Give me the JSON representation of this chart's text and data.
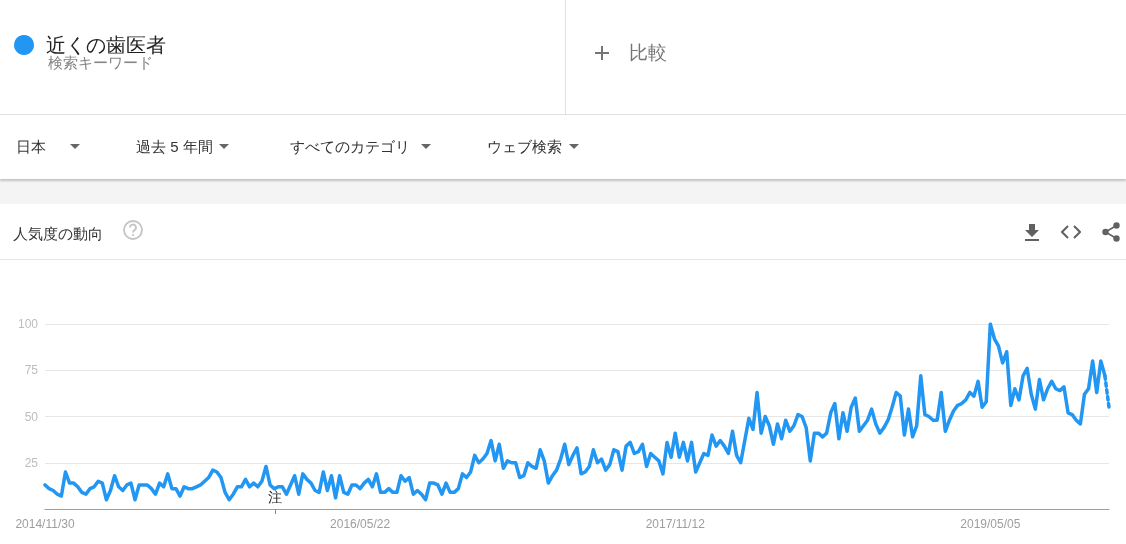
{
  "chart_data": {
    "type": "line",
    "title": "人気度の動向",
    "annotations": [
      "検索キーワード",
      "比較",
      "日本",
      "過去 5 年間",
      "すべてのカテゴリ",
      "ウェブ検索",
      "注"
    ],
    "x": [
      "2014-11-30",
      "2014-12-07",
      "2014-12-14",
      "2014-12-21",
      "2014-12-28",
      "2015-01-04",
      "2015-01-11",
      "2015-01-18",
      "2015-01-25",
      "2015-02-01",
      "2015-02-08",
      "2015-02-15",
      "2015-02-22",
      "2015-03-01",
      "2015-03-08",
      "2015-03-15",
      "2015-03-22",
      "2015-03-29",
      "2015-04-05",
      "2015-04-12",
      "2015-04-19",
      "2015-04-26",
      "2015-05-03",
      "2015-05-10",
      "2015-05-17",
      "2015-05-24",
      "2015-05-31",
      "2015-06-07",
      "2015-06-14",
      "2015-06-21",
      "2015-06-28",
      "2015-07-05",
      "2015-07-12",
      "2015-07-19",
      "2015-07-26",
      "2015-08-02",
      "2015-08-09",
      "2015-08-16",
      "2015-08-23",
      "2015-08-30",
      "2015-09-06",
      "2015-09-13",
      "2015-09-20",
      "2015-09-27",
      "2015-10-04",
      "2015-10-11",
      "2015-10-18",
      "2015-10-25",
      "2015-11-01",
      "2015-11-08",
      "2015-11-15",
      "2015-11-22",
      "2015-11-29",
      "2015-12-06",
      "2015-12-13",
      "2015-12-20",
      "2015-12-27",
      "2016-01-03",
      "2016-01-10",
      "2016-01-17",
      "2016-01-24",
      "2016-01-31",
      "2016-02-07",
      "2016-02-14",
      "2016-02-21",
      "2016-02-28",
      "2016-03-06",
      "2016-03-13",
      "2016-03-20",
      "2016-03-27",
      "2016-04-03",
      "2016-04-10",
      "2016-04-17",
      "2016-04-24",
      "2016-05-01",
      "2016-05-08",
      "2016-05-15",
      "2016-05-22",
      "2016-05-29",
      "2016-06-05",
      "2016-06-12",
      "2016-06-19",
      "2016-06-26",
      "2016-07-03",
      "2016-07-10",
      "2016-07-17",
      "2016-07-24",
      "2016-07-31",
      "2016-08-07",
      "2016-08-14",
      "2016-08-21",
      "2016-08-28",
      "2016-09-04",
      "2016-09-11",
      "2016-09-18",
      "2016-09-25",
      "2016-10-02",
      "2016-10-09",
      "2016-10-16",
      "2016-10-23",
      "2016-10-30",
      "2016-11-06",
      "2016-11-13",
      "2016-11-20",
      "2016-11-27",
      "2016-12-04",
      "2016-12-11",
      "2016-12-18",
      "2016-12-25",
      "2017-01-01",
      "2017-01-08",
      "2017-01-15",
      "2017-01-22",
      "2017-01-29",
      "2017-02-05",
      "2017-02-12",
      "2017-02-19",
      "2017-02-26",
      "2017-03-05",
      "2017-03-12",
      "2017-03-19",
      "2017-03-26",
      "2017-04-02",
      "2017-04-09",
      "2017-04-16",
      "2017-04-23",
      "2017-04-30",
      "2017-05-07",
      "2017-05-14",
      "2017-05-21",
      "2017-05-28",
      "2017-06-04",
      "2017-06-11",
      "2017-06-18",
      "2017-06-25",
      "2017-07-02",
      "2017-07-09",
      "2017-07-16",
      "2017-07-23",
      "2017-07-30",
      "2017-08-06",
      "2017-08-13",
      "2017-08-20",
      "2017-08-27",
      "2017-09-03",
      "2017-09-10",
      "2017-09-17",
      "2017-09-24",
      "2017-10-01",
      "2017-10-08",
      "2017-10-15",
      "2017-10-22",
      "2017-10-29",
      "2017-11-05",
      "2017-11-12",
      "2017-11-19",
      "2017-11-26",
      "2017-12-03",
      "2017-12-10",
      "2017-12-17",
      "2017-12-24",
      "2017-12-31",
      "2018-01-07",
      "2018-01-14",
      "2018-01-21",
      "2018-01-28",
      "2018-02-04",
      "2018-02-11",
      "2018-02-18",
      "2018-02-25",
      "2018-03-04",
      "2018-03-11",
      "2018-03-18",
      "2018-03-25",
      "2018-04-01",
      "2018-04-08",
      "2018-04-15",
      "2018-04-22",
      "2018-04-29",
      "2018-05-06",
      "2018-05-13",
      "2018-05-20",
      "2018-05-27",
      "2018-06-03",
      "2018-06-10",
      "2018-06-17",
      "2018-06-24",
      "2018-07-01",
      "2018-07-08",
      "2018-07-15",
      "2018-07-22",
      "2018-07-29",
      "2018-08-05",
      "2018-08-12",
      "2018-08-19",
      "2018-08-26",
      "2018-09-02",
      "2018-09-09",
      "2018-09-16",
      "2018-09-23",
      "2018-09-30",
      "2018-10-07",
      "2018-10-14",
      "2018-10-21",
      "2018-10-28",
      "2018-11-04",
      "2018-11-11",
      "2018-11-18",
      "2018-11-25",
      "2018-12-02",
      "2018-12-09",
      "2018-12-16",
      "2018-12-23",
      "2018-12-30",
      "2019-01-06",
      "2019-01-13",
      "2019-01-20",
      "2019-01-27",
      "2019-02-03",
      "2019-02-10",
      "2019-02-17",
      "2019-02-24",
      "2019-03-03",
      "2019-03-10",
      "2019-03-17",
      "2019-03-24",
      "2019-03-31",
      "2019-04-07",
      "2019-04-14",
      "2019-04-21",
      "2019-04-28",
      "2019-05-05",
      "2019-05-12",
      "2019-05-19",
      "2019-05-26",
      "2019-06-02",
      "2019-06-09",
      "2019-06-16",
      "2019-06-23",
      "2019-06-30",
      "2019-07-07",
      "2019-07-14",
      "2019-07-21",
      "2019-07-28",
      "2019-08-04",
      "2019-08-11",
      "2019-08-18",
      "2019-08-25",
      "2019-09-01",
      "2019-09-08",
      "2019-09-15",
      "2019-09-22",
      "2019-09-29",
      "2019-10-06",
      "2019-10-13",
      "2019-10-20",
      "2019-10-27",
      "2019-11-03",
      "2019-11-10",
      "2019-11-17"
    ],
    "series": [
      {
        "name": "近くの歯医者",
        "color": "#2196f3",
        "values": [
          13,
          11,
          10,
          8,
          7,
          20,
          14,
          14,
          12,
          9,
          8,
          11,
          12,
          15,
          14,
          5,
          10,
          18,
          12,
          10,
          13,
          14,
          5,
          13,
          13,
          13,
          11,
          8,
          14,
          12,
          19,
          11,
          11,
          7,
          12,
          11,
          11,
          12,
          13,
          15,
          17,
          21,
          20,
          17,
          9,
          5,
          8,
          12,
          12,
          16,
          12,
          14,
          12,
          15,
          23,
          13,
          11,
          12,
          12,
          8,
          13,
          18,
          8,
          19,
          16,
          14,
          10,
          9,
          20,
          10,
          18,
          6,
          18,
          9,
          8,
          13,
          13,
          11,
          14,
          16,
          12,
          19,
          9,
          9,
          11,
          9,
          9,
          18,
          15,
          17,
          8,
          10,
          8,
          5,
          14,
          14,
          13,
          8,
          14,
          9,
          9,
          11,
          19,
          17,
          20,
          29,
          25,
          27,
          30,
          37,
          26,
          35,
          22,
          26,
          25,
          25,
          17,
          18,
          25,
          23,
          22,
          32,
          26,
          14,
          18,
          21,
          27,
          35,
          24,
          29,
          33,
          19,
          20,
          23,
          32,
          25,
          27,
          21,
          24,
          32,
          31,
          21,
          34,
          36,
          30,
          31,
          35,
          23,
          30,
          28,
          26,
          19,
          36,
          28,
          41,
          28,
          36,
          26,
          36,
          20,
          25,
          30,
          29,
          40,
          34,
          37,
          34,
          30,
          42,
          29,
          25,
          37,
          49,
          43,
          63,
          41,
          50,
          45,
          35,
          46,
          38,
          48,
          42,
          45,
          51,
          50,
          44,
          26,
          41,
          41,
          39,
          41,
          52,
          57,
          38,
          52,
          42,
          55,
          60,
          42,
          45,
          48,
          54,
          46,
          41,
          44,
          48,
          55,
          63,
          61,
          40,
          54,
          39,
          45,
          72,
          51,
          50,
          48,
          48,
          63,
          42,
          48,
          53,
          56,
          57,
          59,
          63,
          61,
          69,
          55,
          58,
          100,
          92,
          88,
          79,
          85,
          56,
          65,
          59,
          72,
          76,
          62,
          54,
          70,
          59,
          65,
          69,
          65,
          64,
          66,
          52,
          51,
          48,
          46,
          62,
          65,
          80,
          63,
          80,
          72
        ]
      },
      {
        "color": "#2196f3",
        "x": [
          "2019-11-17",
          "2019-11-24"
        ],
        "values": [
          72,
          55
        ],
        "line_style": "dotted"
      }
    ],
    "xlim": [
      "2014-11-30",
      "2019-11-24"
    ],
    "xticks": [
      {
        "value": "2014-11-30",
        "label": "2014/11/30"
      },
      {
        "value": "2016-05-22",
        "label": "2016/05/22"
      },
      {
        "value": "2017-11-12",
        "label": "2017/11/12"
      },
      {
        "value": "2019-05-05",
        "label": "2019/05/05"
      }
    ],
    "ylim": [
      0,
      100
    ],
    "yticks": [
      25,
      50,
      75,
      100
    ],
    "grid": "y",
    "legend": "top left"
  }
}
